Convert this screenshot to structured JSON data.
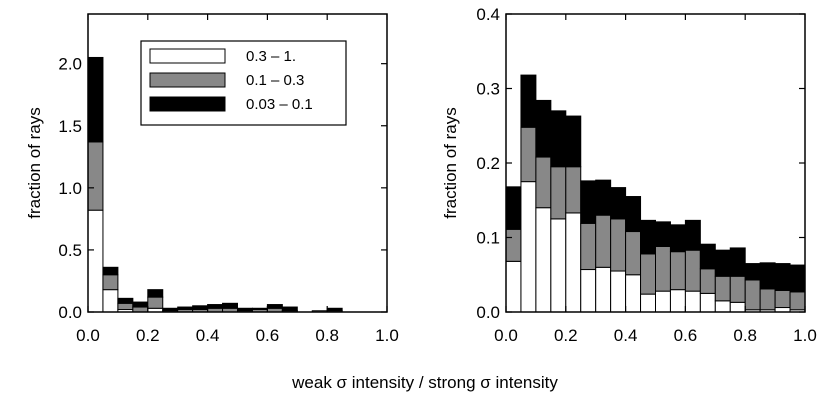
{
  "shared_xlabel": "weak σ  intensity / strong σ  intensity",
  "legend": {
    "entries": [
      {
        "label": "0.3 – 1.",
        "color": "#ffffff"
      },
      {
        "label": "0.1 – 0.3",
        "color": "#888888"
      },
      {
        "label": "0.03 – 0.1",
        "color": "#000000"
      }
    ]
  },
  "chart_data": [
    {
      "type": "bar",
      "stacked": true,
      "panel": "left",
      "ylabel": "fraction of rays",
      "xlabel": "weak σ  intensity / strong σ  intensity",
      "xlim": [
        0,
        1
      ],
      "ylim": [
        0,
        2.4
      ],
      "xticks": [
        0,
        0.2,
        0.4,
        0.6,
        0.8,
        1.0
      ],
      "xtick_labels": [
        "0.0",
        "0.2",
        "0.4",
        "0.6",
        "0.8",
        "1.0"
      ],
      "yticks": [
        0,
        0.5,
        1.0,
        1.5,
        2.0
      ],
      "ytick_labels": [
        "0.0",
        "0.5",
        "1.0",
        "1.5",
        "2.0"
      ],
      "bin_width": 0.05,
      "bin_starts": [
        0.0,
        0.05,
        0.1,
        0.15,
        0.2,
        0.25,
        0.3,
        0.35,
        0.4,
        0.45,
        0.5,
        0.55,
        0.6,
        0.65,
        0.7,
        0.75,
        0.8,
        0.85,
        0.9,
        0.95
      ],
      "series": [
        {
          "name": "0.3 – 1.",
          "color": "#ffffff",
          "values": [
            0.82,
            0.18,
            0.02,
            0.0,
            0.03,
            0.0,
            0.0,
            0.0,
            0.0,
            0.0,
            0.0,
            0.0,
            0.0,
            0.0,
            0.0,
            0.0,
            0.0,
            0.0,
            0.0,
            0.0
          ]
        },
        {
          "name": "0.1 – 0.3",
          "color": "#888888",
          "values": [
            0.55,
            0.12,
            0.05,
            0.04,
            0.09,
            0.01,
            0.02,
            0.02,
            0.03,
            0.03,
            0.01,
            0.02,
            0.03,
            0.01,
            0.0,
            0.01,
            0.01,
            0.0,
            0.0,
            0.0
          ]
        },
        {
          "name": "0.03 – 0.1",
          "color": "#000000",
          "values": [
            0.68,
            0.06,
            0.04,
            0.04,
            0.06,
            0.02,
            0.02,
            0.03,
            0.03,
            0.04,
            0.02,
            0.01,
            0.03,
            0.03,
            0.0,
            0.0,
            0.02,
            0.0,
            0.0,
            0.0
          ]
        }
      ]
    },
    {
      "type": "bar",
      "stacked": true,
      "panel": "right",
      "ylabel": "fraction of rays",
      "xlabel": "weak σ  intensity / strong σ  intensity",
      "xlim": [
        0,
        1
      ],
      "ylim": [
        0,
        0.4
      ],
      "xticks": [
        0,
        0.2,
        0.4,
        0.6,
        0.8,
        1.0
      ],
      "xtick_labels": [
        "0.0",
        "0.2",
        "0.4",
        "0.6",
        "0.8",
        "1.0"
      ],
      "yticks": [
        0,
        0.1,
        0.2,
        0.3,
        0.4
      ],
      "ytick_labels": [
        "0.0",
        "0.1",
        "0.2",
        "0.3",
        "0.4"
      ],
      "bin_width": 0.05,
      "bin_starts": [
        0.0,
        0.05,
        0.1,
        0.15,
        0.2,
        0.25,
        0.3,
        0.35,
        0.4,
        0.45,
        0.5,
        0.55,
        0.6,
        0.65,
        0.7,
        0.75,
        0.8,
        0.85,
        0.9,
        0.95
      ],
      "series": [
        {
          "name": "0.3 – 1.",
          "color": "#ffffff",
          "values": [
            0.068,
            0.175,
            0.14,
            0.125,
            0.133,
            0.057,
            0.06,
            0.055,
            0.05,
            0.024,
            0.028,
            0.03,
            0.028,
            0.025,
            0.015,
            0.013,
            0.003,
            0.003,
            0.006,
            0.003
          ]
        },
        {
          "name": "0.1 – 0.3",
          "color": "#888888",
          "values": [
            0.043,
            0.073,
            0.068,
            0.07,
            0.062,
            0.062,
            0.07,
            0.07,
            0.058,
            0.054,
            0.06,
            0.051,
            0.055,
            0.033,
            0.033,
            0.035,
            0.04,
            0.028,
            0.023,
            0.024
          ]
        },
        {
          "name": "0.03 – 0.1",
          "color": "#000000",
          "values": [
            0.057,
            0.07,
            0.076,
            0.075,
            0.068,
            0.057,
            0.047,
            0.042,
            0.047,
            0.045,
            0.033,
            0.036,
            0.04,
            0.033,
            0.035,
            0.038,
            0.022,
            0.035,
            0.036,
            0.036
          ]
        }
      ]
    }
  ]
}
